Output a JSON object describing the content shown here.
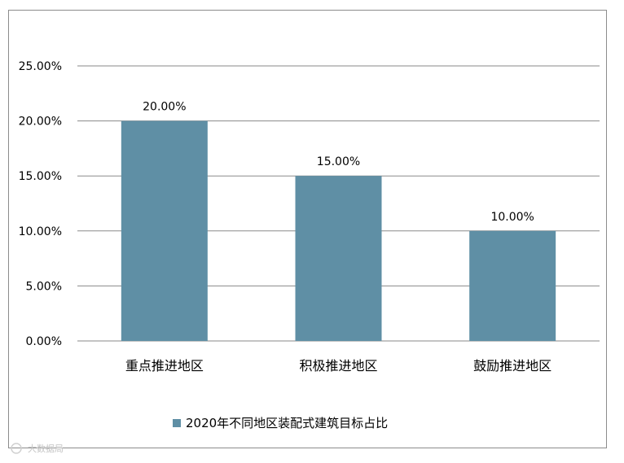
{
  "chart_data": {
    "type": "bar",
    "categories": [
      "重点推进地区",
      "积极推进地区",
      "鼓励推进地区"
    ],
    "series": [
      {
        "name": "2020年不同地区装配式建筑目标占比",
        "values": [
          20.0,
          15.0,
          10.0
        ],
        "color": "#5f8fa5"
      }
    ],
    "data_labels": [
      "20.00%",
      "15.00%",
      "10.00%"
    ],
    "y_ticks": [
      {
        "value": 0,
        "label": "0.00%"
      },
      {
        "value": 5,
        "label": "5.00%"
      },
      {
        "value": 10,
        "label": "10.00%"
      },
      {
        "value": 15,
        "label": "15.00%"
      },
      {
        "value": 20,
        "label": "20.00%"
      },
      {
        "value": 25,
        "label": "25.00%"
      }
    ],
    "ylim": [
      0,
      25
    ],
    "grid": true,
    "legend_position": "bottom"
  },
  "watermark": "大数据局"
}
